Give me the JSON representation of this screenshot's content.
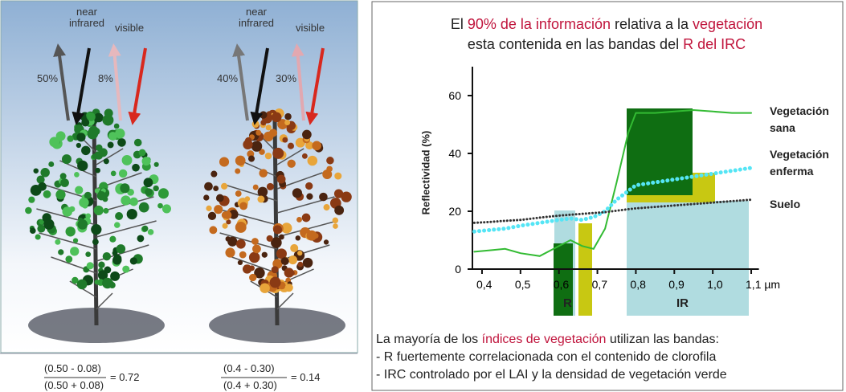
{
  "illustration": {
    "trees": [
      {
        "nir_label": "near infrared",
        "visible_label": "visible",
        "nir_value": "50%",
        "visible_value": "8%",
        "numerator": "(0.50 - 0.08)",
        "denominator": "(0.50 + 0.08)",
        "result": "= 0.72"
      },
      {
        "nir_label": "near infrared",
        "visible_label": "visible",
        "nir_value": "40%",
        "visible_value": "30%",
        "numerator": "(0.4 - 0.30)",
        "denominator": "(0.4 + 0.30)",
        "result": "= 0.14"
      }
    ]
  },
  "chart_data": {
    "type": "line",
    "title_lines": [
      [
        {
          "text": "El ",
          "color": "#222222"
        },
        {
          "text": "90% de la información",
          "color": "#c0143c"
        },
        {
          "text": " relativa a la ",
          "color": "#222222"
        },
        {
          "text": "vegetación",
          "color": "#c0143c"
        }
      ],
      [
        {
          "text": "esta contenida en las bandas del ",
          "color": "#222222"
        },
        {
          "text": "R del IRC",
          "color": "#c0143c"
        }
      ]
    ],
    "y_label": "Reflectividad (%)",
    "x": [
      0.38,
      0.42,
      0.46,
      0.5,
      0.55,
      0.6,
      0.63,
      0.66,
      0.69,
      0.72,
      0.75,
      0.78,
      0.8,
      0.85,
      0.9,
      0.95,
      1.0,
      1.05,
      1.1
    ],
    "series": [
      {
        "name": "Vegetación sana",
        "color": "#33bb33",
        "style": "solid",
        "values": [
          6,
          6.5,
          7,
          5.5,
          4.5,
          8,
          10,
          8,
          7,
          14,
          30,
          47,
          54,
          54,
          54.5,
          55,
          54.5,
          54,
          54
        ]
      },
      {
        "name": "Vegetación enferma",
        "color": "#55e5f5",
        "style": "dotted",
        "values": [
          13,
          13.5,
          14,
          15,
          16,
          17,
          17.5,
          17,
          18,
          20,
          24,
          27,
          29,
          30,
          31,
          32,
          33,
          34,
          35
        ]
      },
      {
        "name": "Suelo",
        "color": "#333333",
        "style": "dotted",
        "values": [
          16,
          16.3,
          16.7,
          17,
          17.8,
          18.5,
          18.8,
          19.1,
          19.4,
          19.7,
          20.2,
          20.7,
          21,
          21.5,
          22,
          22.5,
          23,
          23.5,
          24
        ]
      }
    ],
    "band_labels": [
      "R",
      "IR"
    ],
    "xlim": [
      0.375,
      1.12
    ],
    "ylim": [
      0,
      70
    ],
    "xticks": [
      {
        "value": 0.4,
        "label": "0,4"
      },
      {
        "value": 0.5,
        "label": "0,5"
      },
      {
        "value": 0.6,
        "label": "0,6"
      },
      {
        "value": 0.7,
        "label": "0,7"
      },
      {
        "value": 0.8,
        "label": "0,8"
      },
      {
        "value": 0.9,
        "label": "0,9"
      },
      {
        "value": 1.0,
        "label": "1,0"
      },
      {
        "value": 1.1,
        "label": "1,1 µm"
      }
    ],
    "yticks": [
      0,
      20,
      40,
      60
    ]
  },
  "notes": {
    "intro": [
      {
        "text": "La mayoría de los ",
        "color": "#222222"
      },
      {
        "text": "índices de vegetación",
        "color": "#c0143c"
      },
      {
        "text": " utilizan las bandas:",
        "color": "#222222"
      }
    ],
    "items": [
      "- R fuertemente correlacionada con el contenido de clorofila",
      "- IRC controlado por el LAI y la densidad de vegetación verde"
    ]
  }
}
